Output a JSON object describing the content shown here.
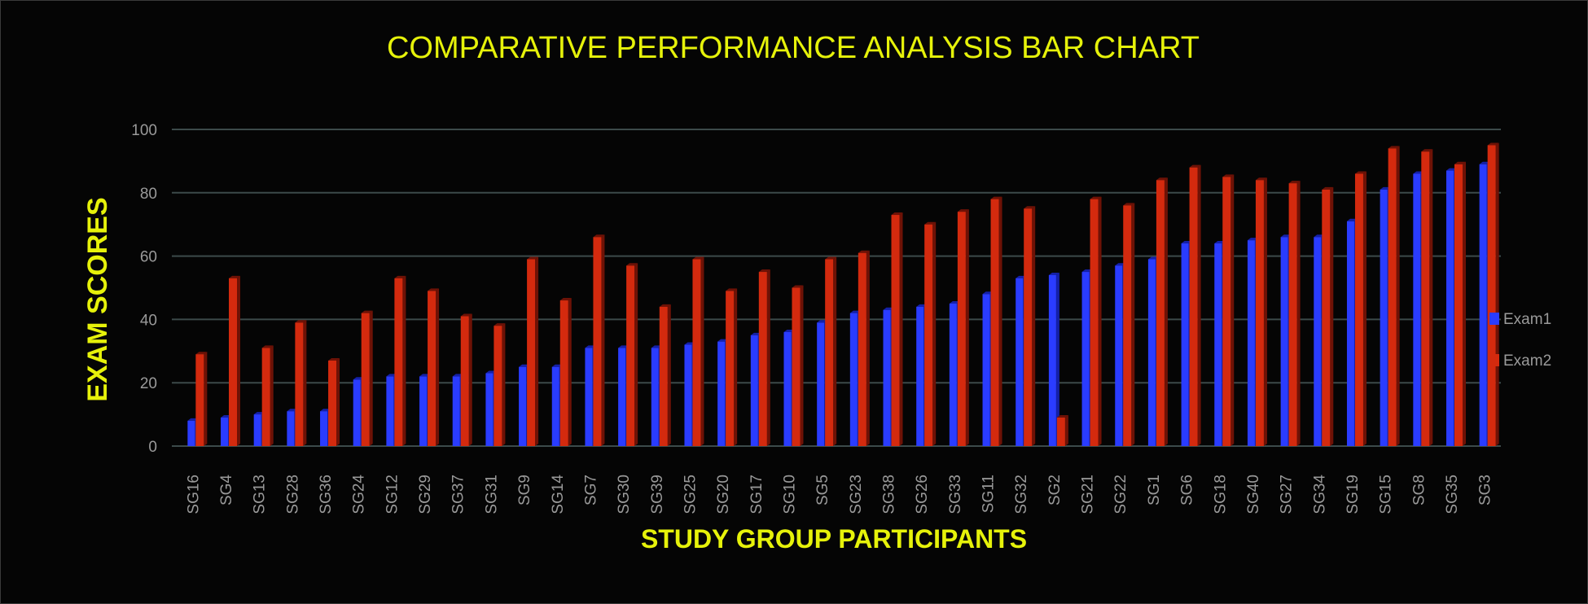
{
  "colors": {
    "background": "#050505",
    "title": "#e6f20a",
    "axis_label": "#e6f20a",
    "tick": "#9a9a9a",
    "grid": "#3c4a4a",
    "exam1": "#2a3cff",
    "exam1_dark": "#1420a8",
    "exam2": "#d42a0e",
    "exam2_dark": "#6e1206",
    "legend_text": "#9a9a9a"
  },
  "chart_data": {
    "type": "bar",
    "title": "COMPARATIVE PERFORMANCE ANALYSIS BAR CHART",
    "xlabel": "STUDY GROUP PARTICIPANTS",
    "ylabel": "EXAM SCORES",
    "ylim": [
      0,
      100
    ],
    "yticks": [
      0,
      20,
      40,
      60,
      80,
      100
    ],
    "grid": true,
    "legend_position": "right",
    "categories": [
      "SG16",
      "SG4",
      "SG13",
      "SG28",
      "SG36",
      "SG24",
      "SG12",
      "SG29",
      "SG37",
      "SG31",
      "SG9",
      "SG14",
      "SG7",
      "SG30",
      "SG39",
      "SG25",
      "SG20",
      "SG17",
      "SG10",
      "SG5",
      "SG23",
      "SG38",
      "SG26",
      "SG33",
      "SG11",
      "SG32",
      "SG2",
      "SG21",
      "SG22",
      "SG1",
      "SG6",
      "SG18",
      "SG40",
      "SG27",
      "SG34",
      "SG19",
      "SG15",
      "SG8",
      "SG35",
      "SG3"
    ],
    "series": [
      {
        "name": "Exam1",
        "values": [
          8,
          9,
          10,
          11,
          11,
          21,
          22,
          22,
          22,
          23,
          25,
          25,
          31,
          31,
          31,
          32,
          33,
          35,
          36,
          39,
          42,
          43,
          44,
          45,
          48,
          53,
          54,
          55,
          57,
          59,
          64,
          64,
          65,
          66,
          66,
          71,
          81,
          86,
          87,
          89
        ]
      },
      {
        "name": "Exam2",
        "values": [
          29,
          53,
          31,
          39,
          27,
          42,
          53,
          49,
          41,
          38,
          59,
          46,
          66,
          57,
          44,
          59,
          49,
          55,
          50,
          59,
          61,
          73,
          70,
          74,
          78,
          75,
          9,
          78,
          76,
          84,
          88,
          85,
          84,
          83,
          81,
          86,
          94,
          93,
          89,
          95
        ]
      }
    ]
  }
}
